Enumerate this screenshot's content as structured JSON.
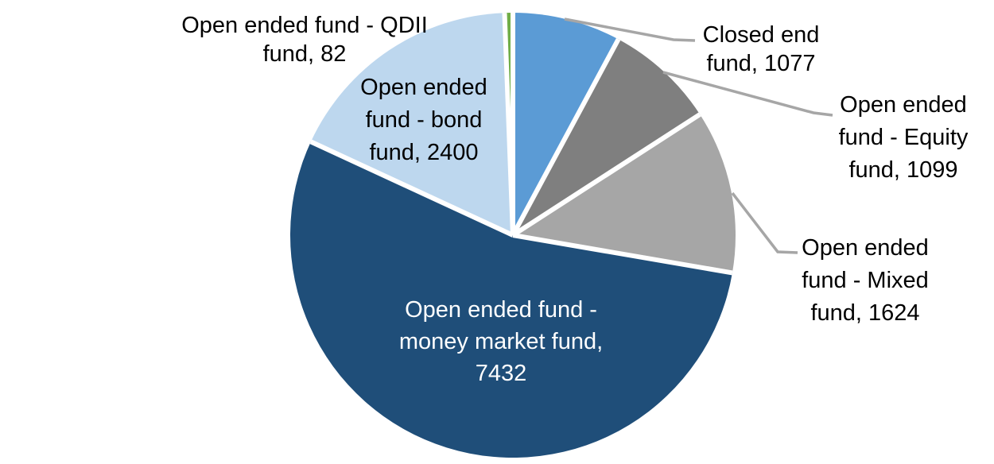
{
  "chart_data": {
    "type": "pie",
    "title": "",
    "legend": "none",
    "start_angle_deg": 0,
    "direction": "clockwise",
    "background_color": "#FFFFFF",
    "separator_color": "#FFFFFF",
    "leader_line_color": "#A6A6A6",
    "total": 13714,
    "slices": [
      {
        "name": "Closed end fund",
        "value": 1077,
        "color": "#5B9BD5",
        "label_lines": [
          "Closed end",
          "fund, 1077"
        ],
        "label_color": "#000000",
        "label_placement": "outside-callout"
      },
      {
        "name": "Open ended fund - Equity fund",
        "value": 1099,
        "color": "#7F7F7F",
        "label_lines": [
          "Open ended",
          "fund - Equity",
          "fund, 1099"
        ],
        "label_color": "#000000",
        "label_placement": "outside-callout"
      },
      {
        "name": "Open ended fund - Mixed fund",
        "value": 1624,
        "color": "#A6A6A6",
        "label_lines": [
          "Open ended",
          "fund - Mixed",
          "fund, 1624"
        ],
        "label_color": "#000000",
        "label_placement": "outside-callout"
      },
      {
        "name": "Open ended fund - money market fund",
        "value": 7432,
        "color": "#1F4E79",
        "label_lines": [
          "Open ended fund -",
          "money market fund,",
          "7432"
        ],
        "label_color": "#FFFFFF",
        "label_placement": "inside"
      },
      {
        "name": "Open ended fund - bond fund",
        "value": 2400,
        "color": "#BDD7EE",
        "label_lines": [
          "Open ended",
          "fund - bond",
          "fund, 2400"
        ],
        "label_color": "#000000",
        "label_placement": "inside"
      },
      {
        "name": "Open ended fund - QDII fund",
        "value": 82,
        "color": "#70AD47",
        "label_lines": [
          "Open ended fund - QDII",
          "fund, 82"
        ],
        "label_color": "#000000",
        "label_placement": "outside"
      }
    ]
  }
}
